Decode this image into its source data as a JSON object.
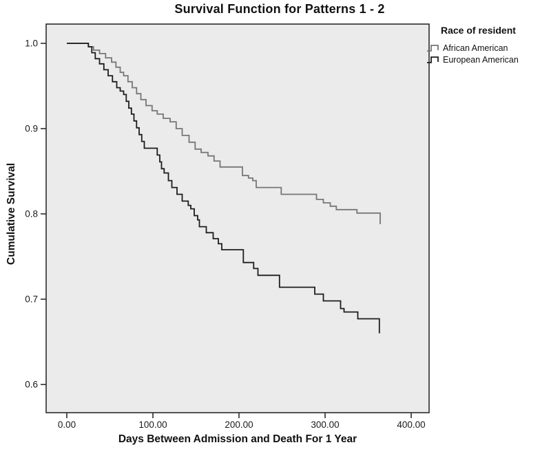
{
  "chart_data": {
    "type": "line",
    "subtype": "kaplan-meier-step-survival",
    "title": "Survival Function for Patterns 1 - 2",
    "xlabel": "Days Between Admission and Death For 1 Year",
    "ylabel": "Cumulative Survival",
    "legend_title": "Race of resident",
    "legend_position": "top-right-outside",
    "grid": false,
    "plot_bg": "#ebebeb",
    "frame_color": "#2b2b2b",
    "xlim": [
      -24,
      421
    ],
    "ylim": [
      0.567,
      1.023
    ],
    "x_ticks": [
      {
        "value": 0,
        "label": "0.00"
      },
      {
        "value": 100,
        "label": "100.00"
      },
      {
        "value": 200,
        "label": "200.00"
      },
      {
        "value": 300,
        "label": "300.00"
      },
      {
        "value": 400,
        "label": "400.00"
      }
    ],
    "y_ticks": [
      {
        "value": 1.0,
        "label": "1.0"
      },
      {
        "value": 0.9,
        "label": "0.9"
      },
      {
        "value": 0.8,
        "label": "0.8"
      },
      {
        "value": 0.7,
        "label": "0.7"
      },
      {
        "value": 0.6,
        "label": "0.6"
      }
    ],
    "series": [
      {
        "name": "African American",
        "color": "#767676",
        "points": [
          [
            0,
            1.0
          ],
          [
            25,
            0.996
          ],
          [
            31,
            0.992
          ],
          [
            38,
            0.988
          ],
          [
            45,
            0.983
          ],
          [
            52,
            0.978
          ],
          [
            57,
            0.972
          ],
          [
            62,
            0.966
          ],
          [
            66,
            0.962
          ],
          [
            71,
            0.955
          ],
          [
            76,
            0.948
          ],
          [
            81,
            0.941
          ],
          [
            86,
            0.934
          ],
          [
            92,
            0.927
          ],
          [
            99,
            0.921
          ],
          [
            105,
            0.917
          ],
          [
            112,
            0.912
          ],
          [
            120,
            0.908
          ],
          [
            127,
            0.9
          ],
          [
            134,
            0.892
          ],
          [
            142,
            0.884
          ],
          [
            149,
            0.876
          ],
          [
            156,
            0.872
          ],
          [
            164,
            0.868
          ],
          [
            171,
            0.862
          ],
          [
            178,
            0.855
          ],
          [
            204,
            0.845
          ],
          [
            211,
            0.842
          ],
          [
            216,
            0.839
          ],
          [
            220,
            0.831
          ],
          [
            249,
            0.823
          ],
          [
            290,
            0.817
          ],
          [
            298,
            0.813
          ],
          [
            306,
            0.809
          ],
          [
            313,
            0.805
          ],
          [
            337,
            0.801
          ],
          [
            364,
            0.788
          ]
        ]
      },
      {
        "name": "European American",
        "color": "#1c1c1c",
        "points": [
          [
            0,
            1.0
          ],
          [
            25,
            0.996
          ],
          [
            29,
            0.989
          ],
          [
            33,
            0.982
          ],
          [
            38,
            0.976
          ],
          [
            43,
            0.969
          ],
          [
            48,
            0.962
          ],
          [
            53,
            0.955
          ],
          [
            58,
            0.948
          ],
          [
            62,
            0.944
          ],
          [
            66,
            0.94
          ],
          [
            69,
            0.932
          ],
          [
            72,
            0.924
          ],
          [
            75,
            0.917
          ],
          [
            78,
            0.909
          ],
          [
            81,
            0.901
          ],
          [
            84,
            0.893
          ],
          [
            87,
            0.885
          ],
          [
            90,
            0.877
          ],
          [
            105,
            0.869
          ],
          [
            108,
            0.861
          ],
          [
            110,
            0.853
          ],
          [
            113,
            0.848
          ],
          [
            118,
            0.839
          ],
          [
            122,
            0.831
          ],
          [
            128,
            0.823
          ],
          [
            134,
            0.815
          ],
          [
            141,
            0.81
          ],
          [
            144,
            0.806
          ],
          [
            148,
            0.798
          ],
          [
            152,
            0.793
          ],
          [
            154,
            0.785
          ],
          [
            162,
            0.778
          ],
          [
            170,
            0.771
          ],
          [
            176,
            0.765
          ],
          [
            180,
            0.758
          ],
          [
            205,
            0.743
          ],
          [
            217,
            0.736
          ],
          [
            222,
            0.728
          ],
          [
            247,
            0.714
          ],
          [
            288,
            0.706
          ],
          [
            298,
            0.698
          ],
          [
            318,
            0.689
          ],
          [
            322,
            0.685
          ],
          [
            338,
            0.677
          ],
          [
            363,
            0.66
          ]
        ]
      }
    ]
  }
}
